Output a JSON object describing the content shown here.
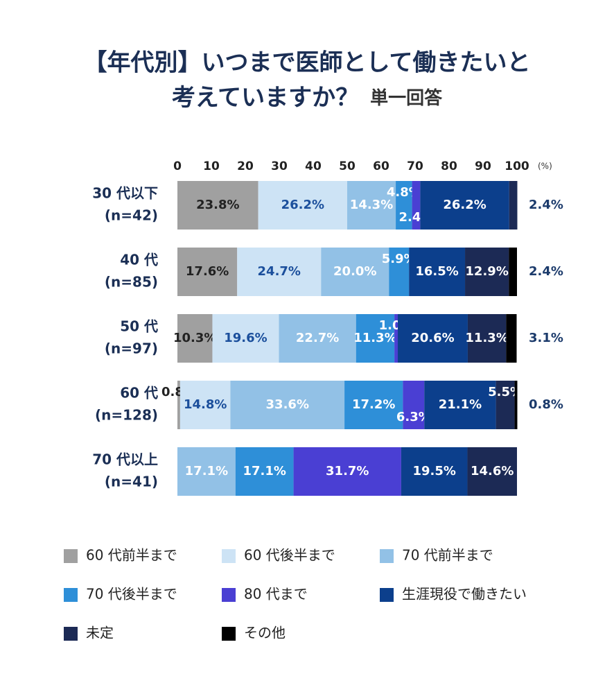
{
  "chart_data": {
    "type": "stacked-bar-horizontal",
    "title": [
      "【年代別】いつまで医師として働きたいと",
      "考えていますか？"
    ],
    "subtitle": "単一回答",
    "categories": [
      "30 代以下",
      "40 代",
      "50 代",
      "60 代",
      "70 代以上"
    ],
    "category_counts": [
      "(n=42)",
      "(n=85)",
      "(n=97)",
      "(n=128)",
      "(n=41)"
    ],
    "xlim": [
      0,
      100
    ],
    "xticks": [
      0,
      10,
      20,
      30,
      40,
      50,
      60,
      70,
      80,
      90,
      100
    ],
    "x_unit": "(%)",
    "series": [
      {
        "name": "60 代前半まで",
        "color": "#a0a0a0",
        "values": [
          23.8,
          17.6,
          10.3,
          0.8,
          null
        ],
        "value_labels": [
          "23.8%",
          "17.6%",
          "10.3%",
          "0.8%",
          null
        ]
      },
      {
        "name": "60 代後半まで",
        "color": "#cde3f5",
        "values": [
          26.2,
          24.7,
          19.6,
          14.8,
          null
        ],
        "value_labels": [
          "26.2%",
          "24.7%",
          "19.6%",
          "14.8%",
          null
        ]
      },
      {
        "name": "70 代前半まで",
        "color": "#92c1e6",
        "values": [
          14.3,
          20.0,
          22.7,
          33.6,
          17.1
        ],
        "value_labels": [
          "14.3%",
          "20.0%",
          "22.7%",
          "33.6%",
          "17.1%"
        ]
      },
      {
        "name": "70 代後半まで",
        "color": "#2e8fd8",
        "values": [
          4.8,
          5.9,
          11.3,
          17.2,
          17.1
        ],
        "value_labels": [
          "4.8%",
          "5.9%",
          "11.3%",
          "17.2%",
          "17.1%"
        ]
      },
      {
        "name": "80 代まで",
        "color": "#4a3fd3",
        "values": [
          2.4,
          null,
          1.0,
          6.3,
          31.7
        ],
        "value_labels": [
          "2.4%",
          null,
          "1.0%",
          "6.3%",
          "31.7%"
        ]
      },
      {
        "name": "生涯現役で働きたい",
        "color": "#0c3f8c",
        "values": [
          26.2,
          16.5,
          20.6,
          21.1,
          19.5
        ],
        "value_labels": [
          "26.2%",
          "16.5%",
          "20.6%",
          "21.1%",
          "19.5%"
        ]
      },
      {
        "name": "未定",
        "color": "#1c2a55",
        "values": [
          2.4,
          12.9,
          11.3,
          5.5,
          14.6
        ],
        "value_labels": [
          "2.4%",
          "12.9%",
          "11.3%",
          "5.5%",
          "14.6%"
        ]
      },
      {
        "name": "その他",
        "color": "#000000",
        "values": [
          null,
          2.4,
          3.1,
          0.8,
          null
        ],
        "value_labels": [
          null,
          "2.4%",
          "3.1%",
          "0.8%",
          null
        ]
      }
    ]
  }
}
